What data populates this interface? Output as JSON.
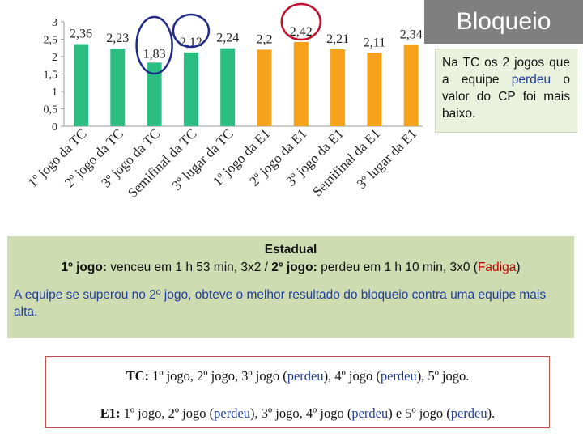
{
  "chart_data": {
    "type": "bar",
    "categories": [
      "1º jogo da TC",
      "2º jogo da TC",
      "3º jogo da TC",
      "Semifinal da TC",
      "3º lugar da TC",
      "1º jogo da E1",
      "2º jogo da E1",
      "3º jogo da E1",
      "Semifinal da E1",
      "3º lugar da E1"
    ],
    "values": [
      2.36,
      2.23,
      1.83,
      2.12,
      2.24,
      2.2,
      2.42,
      2.21,
      2.11,
      2.34
    ],
    "value_labels": [
      "2,36",
      "2,23",
      "1,83",
      "2,12",
      "2,24",
      "2,2",
      "2,42",
      "2,21",
      "2,11",
      "2,34"
    ],
    "yticks": [
      "0",
      "0,5",
      "1",
      "1,5",
      "2",
      "2,5",
      "3"
    ],
    "ylim": [
      0,
      3
    ],
    "title": "",
    "xlabel": "",
    "ylabel": "",
    "colors": {
      "TC": "#2cbd82",
      "E1": "#f7a21b",
      "circle_blue": "#1f2a8a",
      "circle_red": "#c0102a"
    },
    "circled_navy": [
      2,
      3
    ],
    "circled_red": [
      6
    ]
  },
  "title_box": {
    "text": "Bloqueio"
  },
  "note": {
    "part1": "Na TC os 2 jogos que a equipe ",
    "highlight": "perdeu",
    "part2": " o valor do CP foi mais baixo."
  },
  "stats": {
    "heading": "Estadual",
    "g1_label": "1º jogo:",
    "g1_text": " venceu em 1 h 53 min, 3x2 / ",
    "g2_label": "2º jogo:",
    "g2_text": " perdeu em 1 h 10 min, 3x0 (",
    "fatigue": "Fadiga",
    "close_paren": ")",
    "paragraph": "A equipe se superou no 2º jogo, obteve o melhor resultado do bloqueio contra uma equipe mais alta."
  },
  "results": {
    "tc_label": "TC:",
    "tc_a": " 1º jogo, 2º jogo, 3º jogo (",
    "tc_p1": "perdeu",
    "tc_b": "), 4º jogo (",
    "tc_p2": "perdeu",
    "tc_c": "), 5º jogo.",
    "e1_label": "E1:",
    "e1_a": " 1º jogo, 2º jogo (",
    "e1_p1": "perdeu",
    "e1_b": "), 3º jogo, 4º jogo (",
    "e1_p2": "perdeu",
    "e1_c": ") e 5º jogo (",
    "e1_p3": "perdeu",
    "e1_d": ")."
  }
}
